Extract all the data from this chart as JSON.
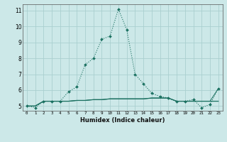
{
  "xlabel": "Humidex (Indice chaleur)",
  "x": [
    0,
    1,
    2,
    3,
    4,
    5,
    6,
    7,
    8,
    9,
    10,
    11,
    12,
    13,
    14,
    15,
    16,
    17,
    18,
    19,
    20,
    21,
    22,
    23
  ],
  "line1_y": [
    5.0,
    4.9,
    5.3,
    5.3,
    5.3,
    5.9,
    6.2,
    7.6,
    8.0,
    9.2,
    9.4,
    11.1,
    9.8,
    7.0,
    6.4,
    5.8,
    5.6,
    5.5,
    5.3,
    5.3,
    5.4,
    4.9,
    5.1,
    6.1
  ],
  "line2_y": [
    5.0,
    5.0,
    5.3,
    5.3,
    5.3,
    5.3,
    5.35,
    5.35,
    5.4,
    5.4,
    5.45,
    5.45,
    5.45,
    5.45,
    5.45,
    5.5,
    5.5,
    5.5,
    5.3,
    5.3,
    5.3,
    5.3,
    5.3,
    5.3
  ],
  "line3_y": [
    5.0,
    5.0,
    5.3,
    5.3,
    5.3,
    5.3,
    5.35,
    5.35,
    5.4,
    5.4,
    5.45,
    5.45,
    5.45,
    5.45,
    5.45,
    5.5,
    5.5,
    5.5,
    5.3,
    5.3,
    5.3,
    5.3,
    5.3,
    6.1
  ],
  "line_color": "#1a7060",
  "bg_color": "#cce8e8",
  "grid_color": "#aacfcf",
  "ylim": [
    4.7,
    11.4
  ],
  "yticks": [
    5,
    6,
    7,
    8,
    9,
    10,
    11
  ],
  "xlim": [
    -0.5,
    23.5
  ],
  "xticks": [
    0,
    1,
    2,
    3,
    4,
    5,
    6,
    7,
    8,
    9,
    10,
    11,
    12,
    13,
    14,
    15,
    16,
    17,
    18,
    19,
    20,
    21,
    22,
    23
  ]
}
